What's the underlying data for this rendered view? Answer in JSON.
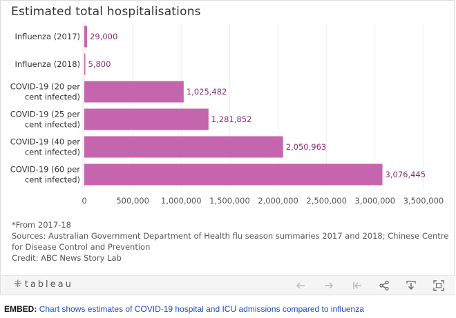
{
  "page": {
    "title": "Estimated total hospitalisations",
    "footnote": "*From 2017-18",
    "sources_line1": "Sources: Australian Government Department of Health flu season summaries 2017 and 2018; Chinese Centre",
    "sources_line2": "for Disease Control and Prevention",
    "credit": "Credit: ABC News Story Lab"
  },
  "toolbar": {
    "brand": "tableau",
    "icons": [
      "undo-icon",
      "redo-icon",
      "revert-icon",
      "share-icon",
      "download-icon",
      "fullscreen-icon"
    ]
  },
  "embed": {
    "label": "EMBED:",
    "link_text": "Chart shows estimates of COVID-19 hospital and ICU admissions compared to influenza"
  },
  "chart_data": {
    "type": "bar",
    "orientation": "horizontal",
    "categories": [
      [
        "Influenza (2017)"
      ],
      [
        "Influenza (2018)"
      ],
      [
        "COVID-19 (20 per",
        "cent infected)"
      ],
      [
        "COVID-19 (25 per",
        "cent infected)"
      ],
      [
        "COVID-19 (40 per",
        "cent infected)"
      ],
      [
        "COVID-19 (60 per",
        "cent infected)"
      ]
    ],
    "values": [
      29000,
      5800,
      1025482,
      1281852,
      2050963,
      3076445
    ],
    "value_labels": [
      "29,000",
      "5,800",
      "1,025,482",
      "1,281,852",
      "2,050,963",
      "3,076,445"
    ],
    "xticks": [
      0,
      500000,
      1000000,
      1500000,
      2000000,
      2500000,
      3000000,
      3500000
    ],
    "xtick_labels": [
      "0",
      "500,000",
      "1,000,000",
      "1,500,000",
      "2,000,000",
      "2,500,000",
      "3,000,000",
      "3,500,000"
    ],
    "xlim": [
      0,
      3700000
    ],
    "grid": true,
    "colors": {
      "bar": "#c565ad",
      "label": "#8e2a77",
      "grid": "#eeeeee",
      "axis_text": "#555555"
    }
  }
}
